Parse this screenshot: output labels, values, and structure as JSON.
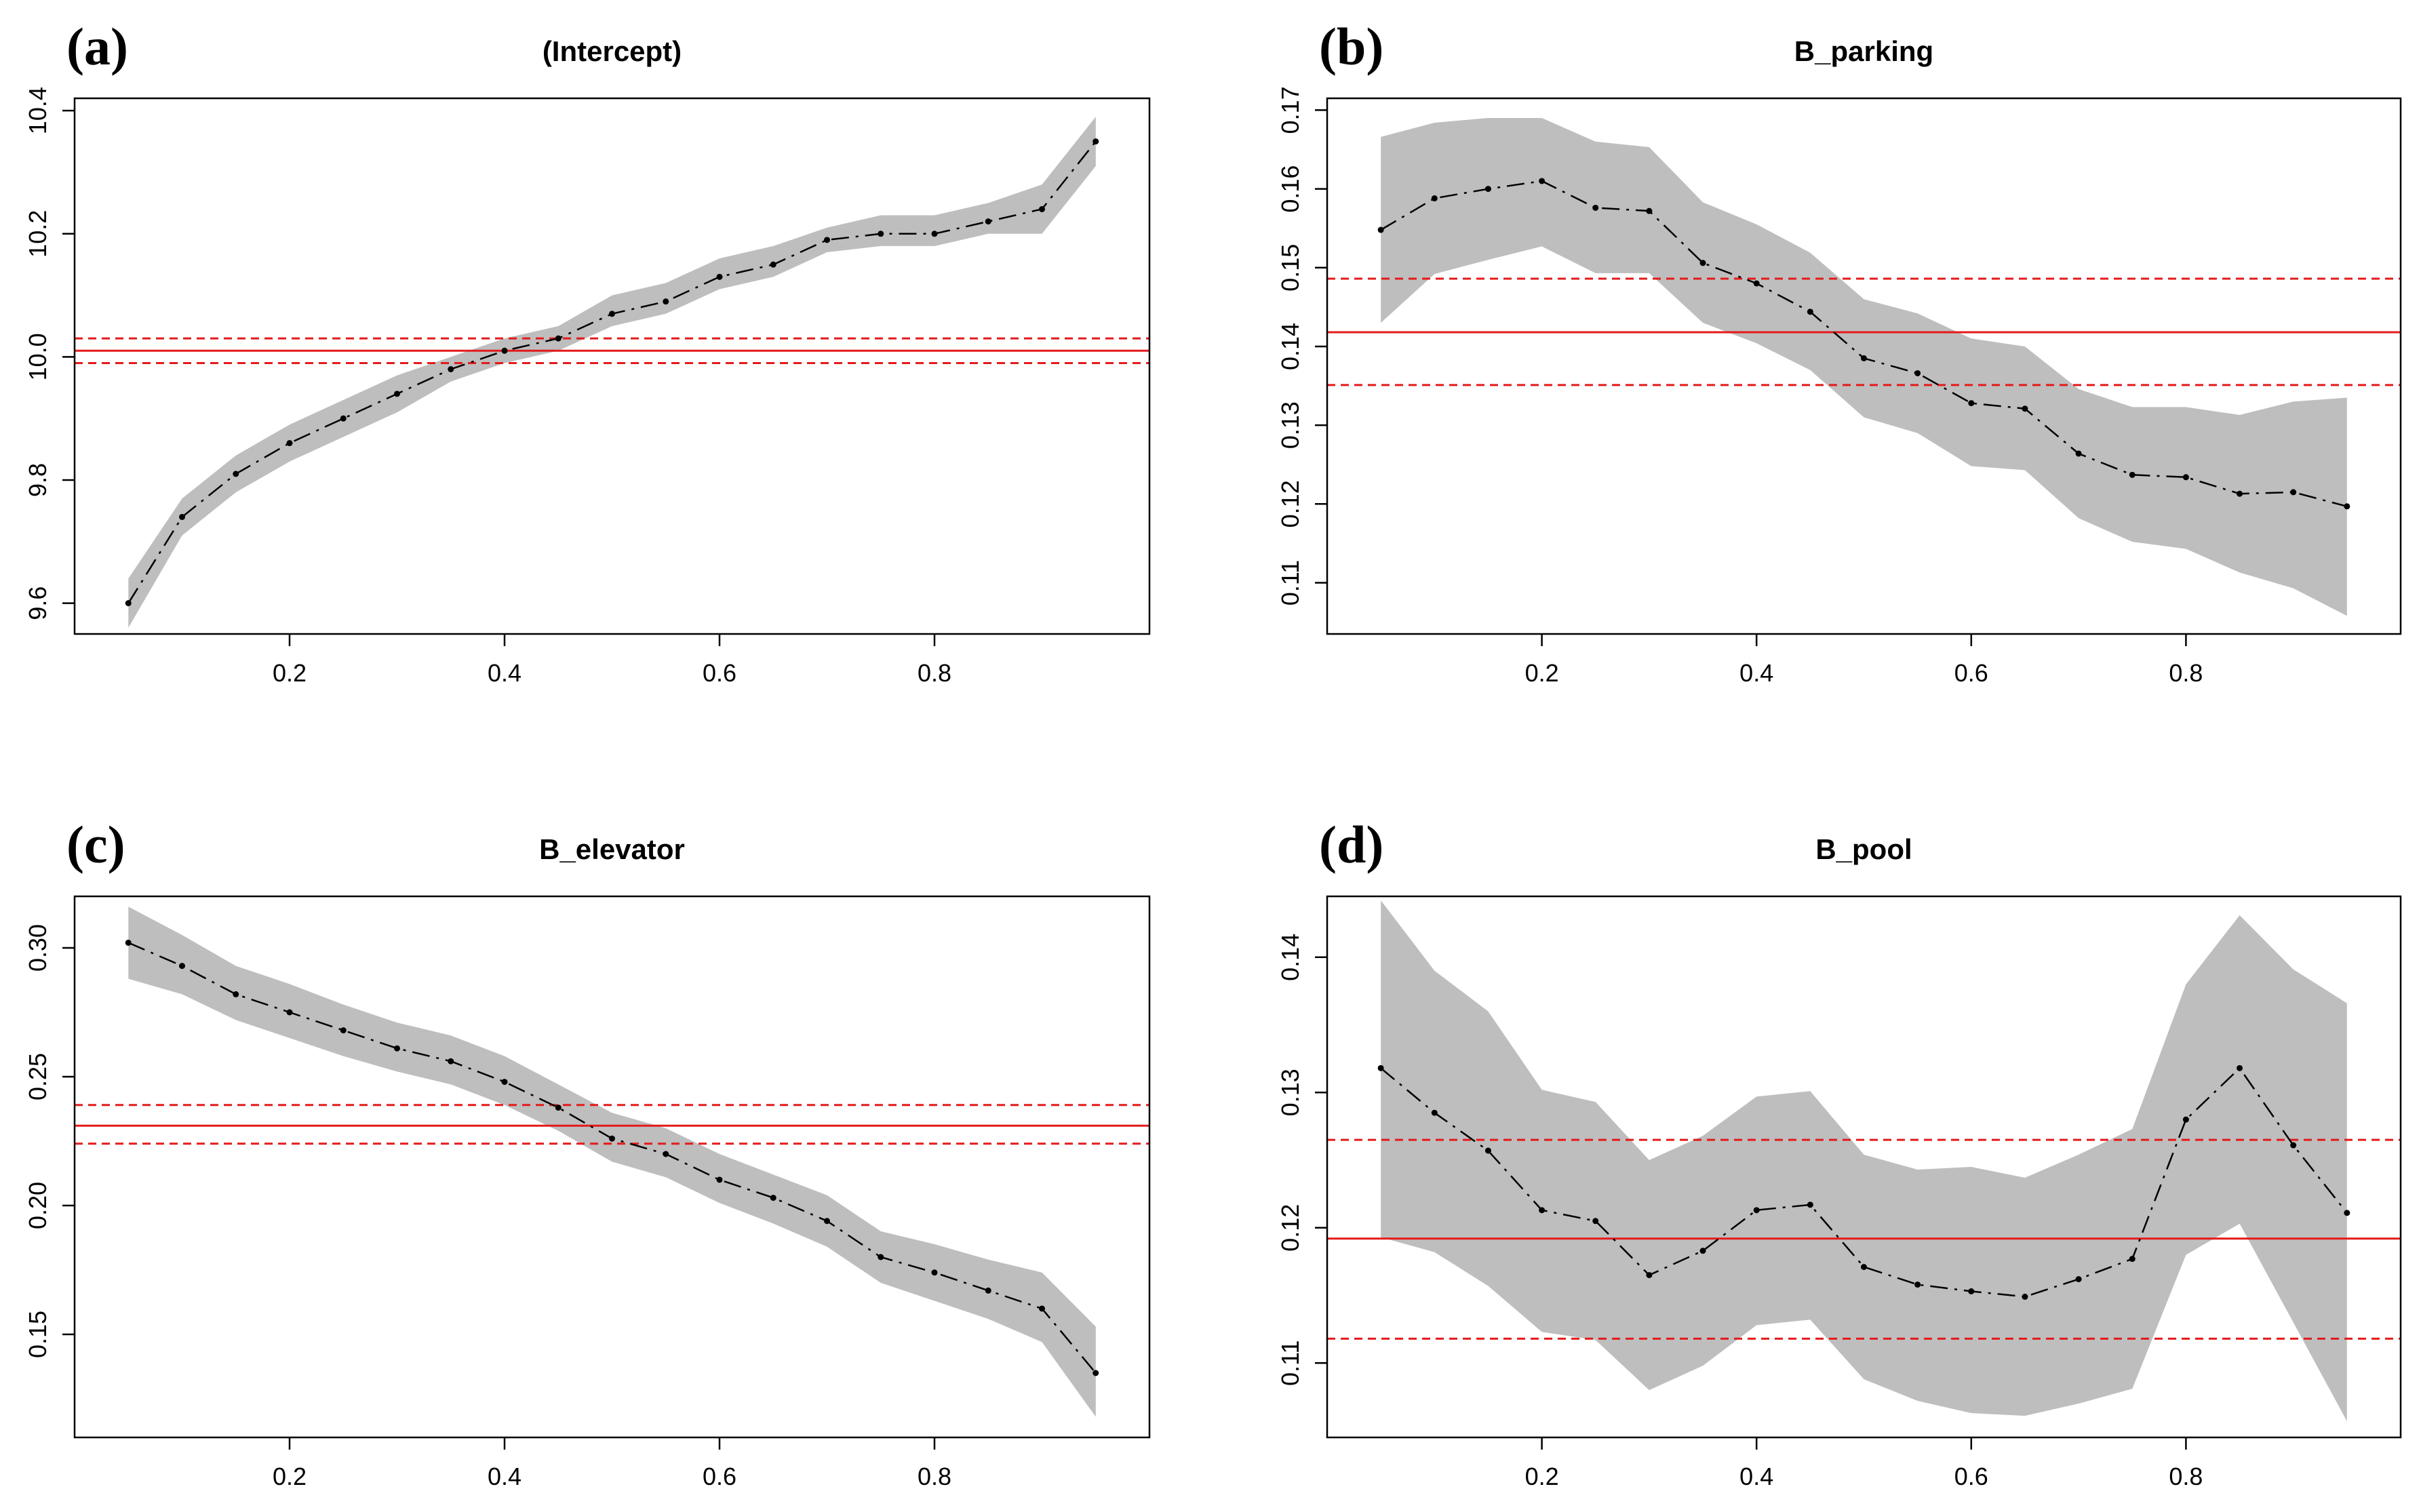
{
  "figure": {
    "x": [
      0.05,
      0.1,
      0.15,
      0.2,
      0.25,
      0.3,
      0.35,
      0.4,
      0.45,
      0.5,
      0.55,
      0.6,
      0.65,
      0.7,
      0.75,
      0.8,
      0.85,
      0.9,
      0.95
    ]
  },
  "colors": {
    "band": "#bebebe",
    "estimate": "#000000",
    "ols": "#e41a1c"
  },
  "chart_data": [
    {
      "type": "line",
      "panel_label": "(a)",
      "title": "(Intercept)",
      "xlabel": "",
      "ylabel": "",
      "xlim": [
        0.0,
        1.0
      ],
      "ylim": [
        9.55,
        10.42
      ],
      "xticks": [
        {
          "v": 0.2,
          "label": "0.2"
        },
        {
          "v": 0.4,
          "label": "0.4"
        },
        {
          "v": 0.6,
          "label": "0.6"
        },
        {
          "v": 0.8,
          "label": "0.8"
        }
      ],
      "yticks": [
        {
          "v": 9.6,
          "label": "9.6"
        },
        {
          "v": 9.8,
          "label": "9.8"
        },
        {
          "v": 10.0,
          "label": "10.0"
        },
        {
          "v": 10.2,
          "label": "10.2"
        },
        {
          "v": 10.4,
          "label": "10.4"
        }
      ],
      "estimate": [
        9.6,
        9.74,
        9.81,
        9.86,
        9.9,
        9.94,
        9.98,
        10.01,
        10.03,
        10.07,
        10.09,
        10.13,
        10.15,
        10.19,
        10.2,
        10.2,
        10.22,
        10.24,
        10.35
      ],
      "lower": [
        9.56,
        9.71,
        9.78,
        9.83,
        9.87,
        9.91,
        9.96,
        9.99,
        10.01,
        10.05,
        10.07,
        10.11,
        10.13,
        10.17,
        10.18,
        10.18,
        10.2,
        10.2,
        10.31
      ],
      "upper": [
        9.64,
        9.77,
        9.84,
        9.89,
        9.93,
        9.97,
        10.0,
        10.03,
        10.05,
        10.1,
        10.12,
        10.16,
        10.18,
        10.21,
        10.23,
        10.23,
        10.25,
        10.28,
        10.39
      ],
      "ols_estimate": 10.01,
      "ols_lower": 9.99,
      "ols_upper": 10.03,
      "grid": false,
      "legend": "none"
    },
    {
      "type": "line",
      "panel_label": "(b)",
      "title": "B_parking",
      "xlabel": "",
      "ylabel": "",
      "xlim": [
        0.0,
        1.0
      ],
      "ylim": [
        0.1035,
        0.1715
      ],
      "xticks": [
        {
          "v": 0.2,
          "label": "0.2"
        },
        {
          "v": 0.4,
          "label": "0.4"
        },
        {
          "v": 0.6,
          "label": "0.6"
        },
        {
          "v": 0.8,
          "label": "0.8"
        }
      ],
      "yticks": [
        {
          "v": 0.11,
          "label": "0.11"
        },
        {
          "v": 0.12,
          "label": "0.12"
        },
        {
          "v": 0.13,
          "label": "0.13"
        },
        {
          "v": 0.14,
          "label": "0.14"
        },
        {
          "v": 0.15,
          "label": "0.15"
        },
        {
          "v": 0.16,
          "label": "0.16"
        },
        {
          "v": 0.17,
          "label": "0.17"
        }
      ],
      "estimate": [
        0.1548,
        0.1588,
        0.16,
        0.161,
        0.1576,
        0.1572,
        0.1506,
        0.148,
        0.1444,
        0.1385,
        0.1366,
        0.1328,
        0.1321,
        0.1264,
        0.1237,
        0.1234,
        0.1213,
        0.1215,
        0.1197
      ],
      "lower": [
        0.143,
        0.1492,
        0.151,
        0.1527,
        0.1493,
        0.1493,
        0.143,
        0.1404,
        0.137,
        0.131,
        0.129,
        0.1248,
        0.1243,
        0.1182,
        0.1152,
        0.1143,
        0.1113,
        0.1093,
        0.1058
      ],
      "upper": [
        0.1666,
        0.1684,
        0.169,
        0.169,
        0.166,
        0.1653,
        0.1583,
        0.1555,
        0.1519,
        0.146,
        0.1442,
        0.141,
        0.14,
        0.1346,
        0.1323,
        0.1323,
        0.1313,
        0.133,
        0.1335
      ],
      "ols_estimate": 0.1418,
      "ols_lower": 0.1351,
      "ols_upper": 0.1486,
      "grid": false,
      "legend": "none"
    },
    {
      "type": "line",
      "panel_label": "(c)",
      "title": "B_elevator",
      "xlabel": "",
      "ylabel": "",
      "xlim": [
        0.0,
        1.0
      ],
      "ylim": [
        0.11,
        0.32
      ],
      "xticks": [
        {
          "v": 0.2,
          "label": "0.2"
        },
        {
          "v": 0.4,
          "label": "0.4"
        },
        {
          "v": 0.6,
          "label": "0.6"
        },
        {
          "v": 0.8,
          "label": "0.8"
        }
      ],
      "yticks": [
        {
          "v": 0.15,
          "label": "0.15"
        },
        {
          "v": 0.2,
          "label": "0.20"
        },
        {
          "v": 0.25,
          "label": "0.25"
        },
        {
          "v": 0.3,
          "label": "0.30"
        }
      ],
      "estimate": [
        0.302,
        0.293,
        0.282,
        0.275,
        0.268,
        0.261,
        0.256,
        0.248,
        0.238,
        0.226,
        0.22,
        0.21,
        0.203,
        0.194,
        0.18,
        0.174,
        0.167,
        0.16,
        0.135
      ],
      "lower": [
        0.288,
        0.282,
        0.272,
        0.265,
        0.258,
        0.252,
        0.247,
        0.239,
        0.229,
        0.217,
        0.211,
        0.201,
        0.193,
        0.184,
        0.17,
        0.163,
        0.156,
        0.147,
        0.118
      ],
      "upper": [
        0.316,
        0.305,
        0.293,
        0.286,
        0.278,
        0.271,
        0.266,
        0.258,
        0.247,
        0.236,
        0.23,
        0.22,
        0.212,
        0.204,
        0.19,
        0.185,
        0.179,
        0.174,
        0.153
      ],
      "ols_estimate": 0.231,
      "ols_lower": 0.224,
      "ols_upper": 0.239,
      "grid": false,
      "legend": "none"
    },
    {
      "type": "line",
      "panel_label": "(d)",
      "title": "B_pool",
      "xlabel": "",
      "ylabel": "",
      "xlim": [
        0.0,
        1.0
      ],
      "ylim": [
        0.1045,
        0.1445
      ],
      "xticks": [
        {
          "v": 0.2,
          "label": "0.2"
        },
        {
          "v": 0.4,
          "label": "0.4"
        },
        {
          "v": 0.6,
          "label": "0.6"
        },
        {
          "v": 0.8,
          "label": "0.8"
        }
      ],
      "yticks": [
        {
          "v": 0.11,
          "label": "0.11"
        },
        {
          "v": 0.12,
          "label": "0.12"
        },
        {
          "v": 0.13,
          "label": "0.13"
        },
        {
          "v": 0.14,
          "label": "0.14"
        }
      ],
      "estimate": [
        0.1318,
        0.1285,
        0.1257,
        0.1213,
        0.1205,
        0.1165,
        0.1183,
        0.1213,
        0.1217,
        0.1171,
        0.1158,
        0.1153,
        0.1149,
        0.1162,
        0.1177,
        0.128,
        0.1318,
        0.1261,
        0.1211
      ],
      "lower": [
        0.1193,
        0.1182,
        0.1157,
        0.1123,
        0.1117,
        0.108,
        0.1098,
        0.1128,
        0.1132,
        0.1088,
        0.1072,
        0.1063,
        0.1061,
        0.107,
        0.1081,
        0.118,
        0.1203,
        0.113,
        0.1057
      ],
      "upper": [
        0.1442,
        0.139,
        0.136,
        0.1302,
        0.1293,
        0.125,
        0.1268,
        0.1297,
        0.1301,
        0.1254,
        0.1243,
        0.1245,
        0.1237,
        0.1254,
        0.1273,
        0.138,
        0.1431,
        0.1391,
        0.1366
      ],
      "ols_estimate": 0.1192,
      "ols_lower": 0.1118,
      "ols_upper": 0.1265,
      "grid": false,
      "legend": "none"
    }
  ]
}
